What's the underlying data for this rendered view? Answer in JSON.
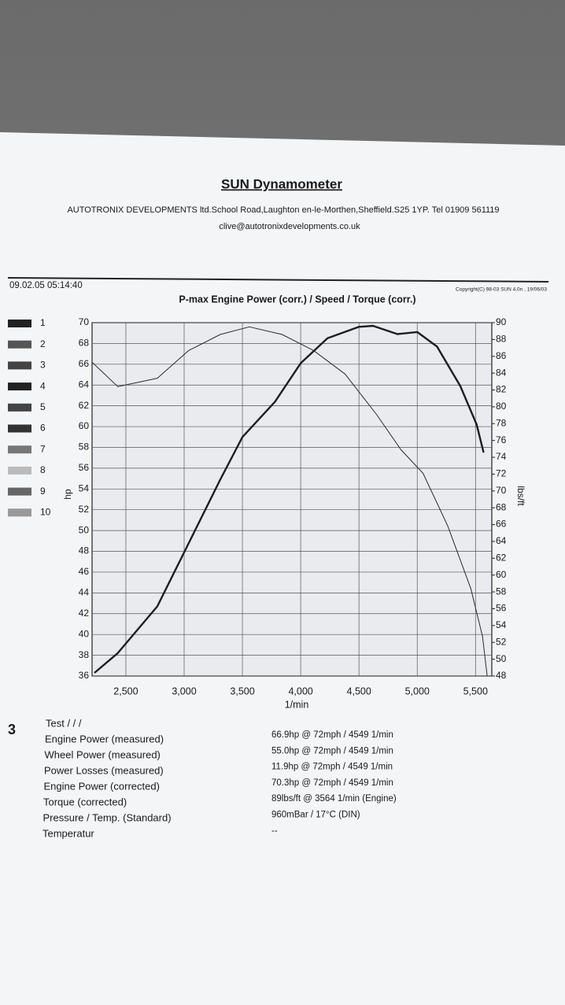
{
  "header": {
    "title": "SUN Dynamometer",
    "address": "AUTOTRONIX DEVELOPMENTS ltd.School Road,Laughton en-le-Morthen,Sheffield.S25 1YP. Tel 01909 561119",
    "email": "clive@autotronixdevelopments.co.uk",
    "timestamp": "09.02.05 05:14:40",
    "copyright": "Copyright(C) 98-03 SUN 4.0n , 19/06/03"
  },
  "channel_slots": [
    {
      "label": "1",
      "color": "#222222"
    },
    {
      "label": "2",
      "color": "#555555"
    },
    {
      "label": "3",
      "color": "#444444"
    },
    {
      "label": "4",
      "color": "#222222"
    },
    {
      "label": "5",
      "color": "#444444"
    },
    {
      "label": "6",
      "color": "#333333"
    },
    {
      "label": "7",
      "color": "#777777"
    },
    {
      "label": "8",
      "color": "#bbbbbb"
    },
    {
      "label": "9",
      "color": "#666666"
    },
    {
      "label": "10",
      "color": "#999999"
    }
  ],
  "chart_data": {
    "type": "line",
    "title": "P-max Engine Power (corr.) / Speed / Torque (corr.)",
    "x_label": "1/min",
    "y_label": "hp",
    "y2_label": "lbs/ft",
    "xlim": [
      2210,
      5640
    ],
    "xticks": [
      {
        "value": 2500,
        "label": "2,500"
      },
      {
        "value": 3000,
        "label": "3,000"
      },
      {
        "value": 3500,
        "label": "3,500"
      },
      {
        "value": 4000,
        "label": "4,000"
      },
      {
        "value": 4500,
        "label": "4,500"
      },
      {
        "value": 5000,
        "label": "5,000"
      },
      {
        "value": 5500,
        "label": "5,500"
      }
    ],
    "ylim": [
      36,
      70
    ],
    "yticks": [
      36,
      38,
      40,
      42,
      44,
      46,
      48,
      50,
      52,
      54,
      56,
      58,
      60,
      62,
      64,
      66,
      68,
      70
    ],
    "y2lim": [
      48,
      90
    ],
    "y2ticks": [
      48,
      50,
      52,
      54,
      56,
      58,
      60,
      62,
      64,
      66,
      68,
      70,
      72,
      74,
      76,
      78,
      80,
      82,
      84,
      86,
      88,
      90
    ],
    "grid": true,
    "series": [
      {
        "color": "#1e1e1e",
        "width": 2.4,
        "x": [
          2230,
          2430,
          2770,
          3040,
          3310,
          3500,
          3780,
          4000,
          4230,
          4500,
          4620,
          4830,
          5000,
          5170,
          5370,
          5510,
          5570
        ],
        "values": [
          36.3,
          38.2,
          42.7,
          48.8,
          54.9,
          59.0,
          62.4,
          66.1,
          68.5,
          69.6,
          69.7,
          68.9,
          69.1,
          67.7,
          63.9,
          60.2,
          57.5
        ]
      },
      {
        "color": "#2a2a2a",
        "width": 1,
        "axis": "y2",
        "x": [
          2210,
          2430,
          2770,
          3040,
          3310,
          3560,
          3840,
          4110,
          4380,
          4650,
          4860,
          5050,
          5260,
          5460,
          5560,
          5600
        ],
        "values": [
          85.3,
          82.4,
          83.4,
          86.7,
          88.6,
          89.5,
          88.6,
          86.7,
          83.9,
          79.1,
          74.9,
          72.1,
          65.9,
          58.4,
          52.7,
          48
        ]
      }
    ]
  },
  "results": {
    "marker": "3",
    "test": "Test / / /",
    "rows": [
      [
        "Engine Power (measured)",
        "66.9hp @ 72mph / 4549 1/min"
      ],
      [
        "Wheel Power (measured)",
        "55.0hp @ 72mph / 4549 1/min"
      ],
      [
        "Power Losses (measured)",
        "11.9hp @ 72mph / 4549 1/min"
      ],
      [
        "Engine Power (corrected)",
        "70.3hp @ 72mph / 4549 1/min"
      ],
      [
        "Torque (corrected)",
        "89lbs/ft @ 3564 1/min (Engine)"
      ],
      [
        "Pressure / Temp. (Standard)",
        "960mBar / 17°C (DIN)"
      ],
      [
        "Temperatur",
        "--"
      ]
    ]
  }
}
